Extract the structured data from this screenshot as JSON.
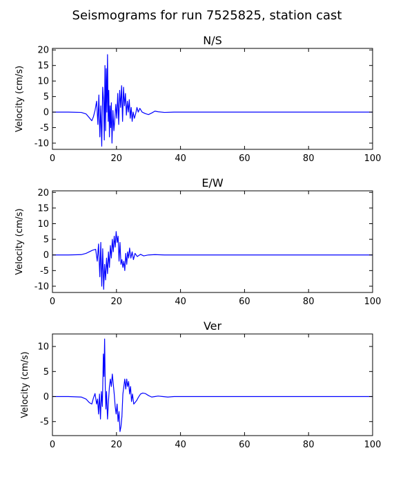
{
  "figure_title": "Seismograms for run 7525825, station cast",
  "chart_data": [
    {
      "type": "line",
      "title": "N/S",
      "xlabel": "",
      "ylabel": "Velocity (cm/s)",
      "xlim": [
        0,
        100
      ],
      "ylim": [
        -12,
        20.5
      ],
      "xticks": [
        0,
        20,
        40,
        60,
        80,
        100
      ],
      "yticks": [
        -10,
        -5,
        0,
        5,
        10,
        15,
        20
      ],
      "grid": false,
      "color": "#0000ff",
      "series": [
        {
          "x": [
            0,
            5,
            9,
            10.5,
            11.5,
            12.3,
            12.8,
            13.3,
            13.8,
            14.2,
            14.5,
            14.8,
            15.1,
            15.4,
            15.7,
            16.0,
            16.2,
            16.4,
            16.6,
            16.8,
            17.0,
            17.2,
            17.4,
            17.6,
            17.8,
            18.0,
            18.2,
            18.4,
            18.6,
            18.9,
            19.2,
            19.5,
            19.8,
            20.1,
            20.4,
            20.7,
            21.0,
            21.3,
            21.6,
            21.9,
            22.2,
            22.5,
            22.8,
            23.1,
            23.4,
            23.7,
            24.0,
            24.3,
            24.6,
            24.9,
            25.2,
            25.6,
            26.0,
            26.4,
            26.8,
            27.3,
            28.0,
            29.0,
            30.0,
            31.0,
            32.0,
            33.0,
            35.0,
            38.0,
            45.0,
            60.0,
            80.0,
            100.0
          ],
          "y": [
            0,
            0,
            -0.1,
            -0.6,
            -1.8,
            -2.8,
            -1.5,
            0.5,
            3.5,
            -4,
            5.5,
            -8,
            2,
            -11,
            8,
            3,
            -9,
            15,
            -6,
            14,
            0,
            18.5,
            -3,
            7,
            -8,
            2,
            -5,
            3,
            -10,
            0.5,
            -6,
            -2,
            2.5,
            -2,
            6,
            -4,
            7,
            1.5,
            8.5,
            -3,
            8,
            2,
            6,
            -1,
            3.5,
            0,
            4,
            -2,
            1.5,
            -3,
            0,
            -2,
            -0.5,
            1.5,
            0,
            1.2,
            0,
            -0.5,
            -0.8,
            -0.3,
            0.3,
            0.1,
            -0.1,
            0,
            0,
            0,
            0,
            0
          ]
        }
      ]
    },
    {
      "type": "line",
      "title": "E/W",
      "xlabel": "",
      "ylabel": "Velocity (cm/s)",
      "xlim": [
        0,
        100
      ],
      "ylim": [
        -12,
        20.5
      ],
      "xticks": [
        0,
        20,
        40,
        60,
        80,
        100
      ],
      "yticks": [
        -10,
        -5,
        0,
        5,
        10,
        15,
        20
      ],
      "grid": false,
      "color": "#0000ff",
      "series": [
        {
          "x": [
            0,
            5,
            9,
            10.5,
            11.5,
            12.5,
            13.5,
            14.0,
            14.4,
            14.8,
            15.1,
            15.4,
            15.7,
            16.0,
            16.3,
            16.6,
            16.9,
            17.2,
            17.5,
            17.8,
            18.1,
            18.4,
            18.7,
            19.0,
            19.3,
            19.6,
            19.9,
            20.2,
            20.5,
            20.8,
            21.1,
            21.4,
            21.7,
            22.0,
            22.3,
            22.6,
            22.9,
            23.2,
            23.5,
            23.8,
            24.1,
            24.5,
            24.9,
            25.3,
            25.8,
            26.5,
            27.5,
            28.5,
            30.0,
            32.0,
            35.0,
            40.0,
            60.0,
            80.0,
            100.0
          ],
          "y": [
            0,
            0,
            0.1,
            0.5,
            1.0,
            1.5,
            1.8,
            -2,
            3.5,
            -7,
            4,
            -10,
            2,
            -11,
            -3,
            -8,
            -1,
            -6,
            1,
            -4,
            3,
            -1,
            5,
            1,
            6,
            2.5,
            7.5,
            4,
            6,
            -2,
            4,
            -3,
            -1.5,
            -4,
            -2,
            -5,
            0.5,
            -3,
            1,
            -1,
            2.2,
            -1,
            1,
            -1.5,
            0.5,
            -0.5,
            0.2,
            -0.3,
            0,
            0.1,
            0,
            0,
            0,
            0,
            0
          ]
        }
      ]
    },
    {
      "type": "line",
      "title": "Ver",
      "xlabel": "",
      "ylabel": "Velocity (cm/s)",
      "xlim": [
        0,
        100
      ],
      "ylim": [
        -7.8,
        12.5
      ],
      "xticks": [
        0,
        20,
        40,
        60,
        80,
        100
      ],
      "yticks": [
        -5,
        0,
        5,
        10
      ],
      "grid": false,
      "color": "#0000ff",
      "series": [
        {
          "x": [
            0,
            5,
            9,
            10.5,
            11.5,
            12.3,
            12.8,
            13.3,
            13.8,
            14.1,
            14.4,
            14.7,
            15.0,
            15.3,
            15.6,
            15.9,
            16.1,
            16.3,
            16.5,
            16.7,
            16.9,
            17.2,
            17.5,
            17.8,
            18.1,
            18.4,
            18.7,
            19.0,
            19.3,
            19.6,
            19.9,
            20.2,
            20.5,
            20.8,
            21.1,
            21.4,
            21.7,
            22.0,
            22.3,
            22.6,
            22.9,
            23.2,
            23.5,
            23.8,
            24.1,
            24.4,
            24.7,
            25.0,
            25.4,
            25.8,
            26.3,
            26.8,
            27.5,
            28.2,
            29.0,
            30.0,
            31.0,
            32.0,
            33.0,
            34.5,
            36.0,
            38.0,
            42.0,
            60.0,
            80.0,
            100.0
          ],
          "y": [
            0,
            0,
            -0.1,
            -0.5,
            -1.2,
            -1.5,
            -0.3,
            0.6,
            -1.5,
            -0.5,
            -3.5,
            0.5,
            -4.5,
            1,
            -2,
            8.5,
            4,
            11.5,
            2,
            -2.5,
            1,
            -4.5,
            -1,
            2,
            3.5,
            2,
            4.5,
            2.5,
            0.5,
            -2,
            -3.5,
            -1.5,
            -5,
            -3,
            -7,
            -6,
            -4,
            0.5,
            2,
            3.5,
            1.5,
            3.5,
            2,
            3,
            0.5,
            2,
            -1,
            0.5,
            -1.5,
            -1.2,
            -0.8,
            -0.2,
            0.5,
            0.7,
            0.6,
            0.2,
            -0.1,
            0,
            0.1,
            0,
            -0.1,
            0,
            0,
            0,
            0,
            0
          ]
        }
      ]
    }
  ]
}
